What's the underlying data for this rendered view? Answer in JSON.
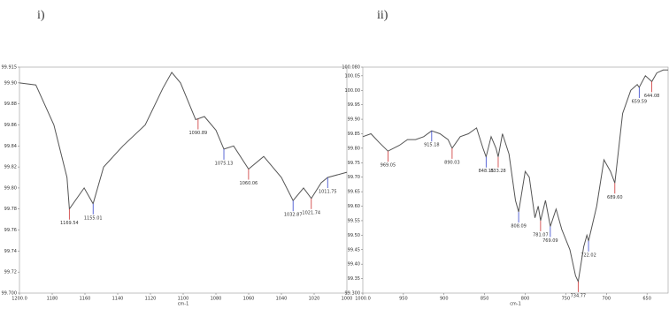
{
  "chart_data": [
    {
      "type": "line",
      "heading": "i)",
      "x_label": "cm-1",
      "xlim": [
        1200,
        1000
      ],
      "ylim": [
        99.7,
        99.915
      ],
      "xticks": [
        {
          "value": 1200,
          "label": "1200.0"
        },
        1180,
        1160,
        1140,
        1120,
        1100,
        1080,
        1060,
        1040,
        1020,
        1000
      ],
      "yticks": [
        {
          "value": 99.7,
          "label": "99.700"
        },
        99.72,
        99.74,
        99.76,
        99.78,
        {
          "value": 99.8,
          "label": "99.80"
        },
        99.82,
        99.84,
        99.86,
        99.88,
        {
          "value": 99.9,
          "label": "99.90"
        },
        99.915
      ],
      "series": [
        {
          "color": "#555555",
          "x": [
            1200,
            1190,
            1179,
            1171,
            1169.54,
            1160.5,
            1155.01,
            1148.6,
            1136.8,
            1123.2,
            1112.4,
            1107,
            1101.6,
            1092.4,
            1087,
            1080,
            1075.13,
            1069.2,
            1060.06,
            1050.8,
            1040,
            1032.87,
            1026.5,
            1021.74,
            1015.7,
            1011.75,
            1000
          ],
          "values": [
            99.9,
            99.898,
            99.86,
            99.81,
            99.78,
            99.8,
            99.785,
            99.82,
            99.84,
            99.86,
            99.895,
            99.91,
            99.9,
            99.865,
            99.868,
            99.855,
            99.837,
            99.84,
            99.818,
            99.83,
            99.81,
            99.788,
            99.8,
            99.79,
            99.805,
            99.81,
            99.815
          ]
        }
      ],
      "peaks": {
        "x": [
          1169.54,
          1155.01,
          1090.89,
          1075.13,
          1060.06,
          1032.87,
          1021.74,
          1011.75
        ],
        "labels": [
          "1169.54",
          "1155.01",
          "1090.89",
          "1075.13",
          "1060.06",
          "1032.87",
          "1021.74",
          "1011.75"
        ]
      }
    },
    {
      "type": "line",
      "heading": "ii)",
      "x_label": "cm-1",
      "xlim": [
        1000,
        624
      ],
      "ylim": [
        99.3,
        100.08
      ],
      "xticks": [
        {
          "value": 1000,
          "label": "1000.0"
        },
        950,
        900,
        850,
        800,
        750,
        700,
        650
      ],
      "yticks": [
        {
          "value": 99.3,
          "label": "99.300"
        },
        99.35,
        {
          "value": 99.4,
          "label": "99.40"
        },
        99.45,
        {
          "value": 99.5,
          "label": "99.50"
        },
        99.55,
        {
          "value": 99.6,
          "label": "99.60"
        },
        99.65,
        {
          "value": 99.7,
          "label": "99.70"
        },
        99.75,
        {
          "value": 99.8,
          "label": "99.80"
        },
        99.85,
        {
          "value": 99.9,
          "label": "99.90"
        },
        99.95,
        {
          "value": 100,
          "label": "100.00"
        },
        100.05,
        {
          "value": 100.08,
          "label": "100.080"
        }
      ],
      "series": [
        {
          "color": "#555555",
          "x": [
            1000,
            990,
            980,
            969.05,
            955,
            945,
            935,
            925,
            915.18,
            905,
            895,
            890.03,
            880,
            870,
            860,
            852,
            848.15,
            842,
            836,
            833.28,
            828,
            820,
            812,
            808.09,
            800,
            795,
            788,
            784,
            781.07,
            775,
            769.09,
            762,
            755,
            745,
            738,
            734.77,
            728,
            724,
            722.02,
            712,
            703,
            695,
            689.6,
            680,
            670,
            662,
            659.59,
            652,
            644.08,
            638,
            630,
            624
          ],
          "values": [
            99.84,
            99.85,
            99.82,
            99.79,
            99.81,
            99.83,
            99.83,
            99.84,
            99.86,
            99.85,
            99.83,
            99.8,
            99.84,
            99.85,
            99.87,
            99.8,
            99.77,
            99.84,
            99.8,
            99.77,
            99.85,
            99.78,
            99.62,
            99.58,
            99.72,
            99.7,
            99.56,
            99.6,
            99.55,
            99.62,
            99.53,
            99.59,
            99.52,
            99.45,
            99.36,
            99.34,
            99.46,
            99.5,
            99.48,
            99.6,
            99.76,
            99.72,
            99.68,
            99.92,
            100,
            100.02,
            100.01,
            100.05,
            100.03,
            100.06,
            100.07,
            100.07
          ]
        }
      ],
      "peaks": {
        "x": [
          969.05,
          915.18,
          890.03,
          848.15,
          833.28,
          808.09,
          781.07,
          769.09,
          734.77,
          722.02,
          689.6,
          659.59,
          644.08
        ],
        "labels": [
          "969.05",
          "915.18",
          "890.03",
          "848.15",
          "833.28",
          "808.09",
          "781.07",
          "769.09",
          "734.77",
          "722.02",
          "689.60",
          "659.59",
          "644.08"
        ]
      }
    }
  ]
}
